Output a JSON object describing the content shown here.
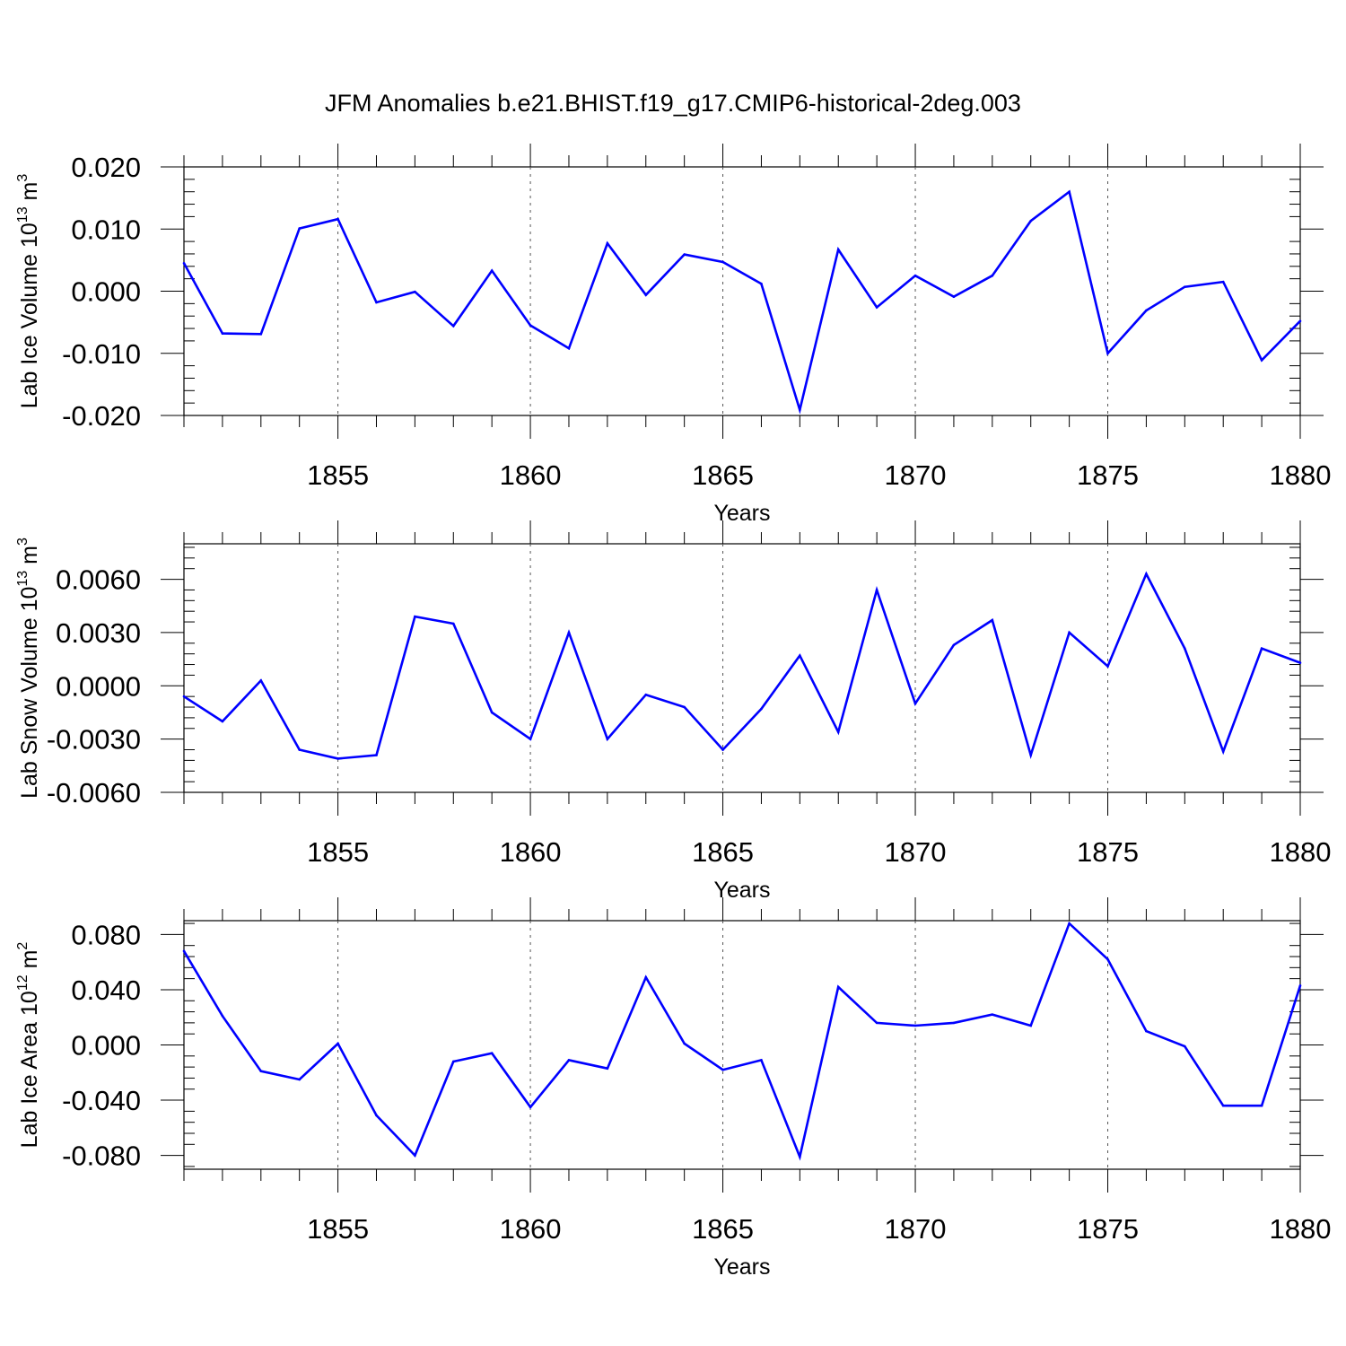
{
  "title": "JFM Anomalies b.e21.BHIST.f19_g17.CMIP6-historical-2deg.003",
  "chart_data": [
    {
      "type": "line",
      "ylabel": {
        "main": "Lab Ice Volume 10",
        "sup": "13",
        "unit": " m",
        "unit_sup": "3"
      },
      "xlabel": "Years",
      "xlim": [
        1851,
        1880
      ],
      "ylim": [
        -0.02,
        0.02
      ],
      "yticks": [
        -0.02,
        -0.01,
        0.0,
        0.01,
        0.02
      ],
      "ytick_labels": [
        "-0.020",
        "-0.010",
        "0.000",
        "0.010",
        "0.020"
      ],
      "xticks": [
        1855,
        1860,
        1865,
        1870,
        1875,
        1880
      ],
      "xtick_labels": [
        "1855",
        "1860",
        "1865",
        "1870",
        "1875",
        "1880"
      ],
      "color": "#0000ff",
      "x": [
        1851,
        1852,
        1853,
        1854,
        1855,
        1856,
        1857,
        1858,
        1859,
        1860,
        1861,
        1862,
        1863,
        1864,
        1865,
        1866,
        1867,
        1868,
        1869,
        1870,
        1871,
        1872,
        1873,
        1874,
        1875,
        1876,
        1877,
        1878,
        1879,
        1880
      ],
      "y": [
        0.0045,
        -0.0068,
        -0.0069,
        0.0101,
        0.0116,
        -0.0018,
        -0.0001,
        -0.0056,
        0.0033,
        -0.0055,
        -0.0092,
        0.0077,
        -0.0006,
        0.0059,
        0.0047,
        0.0012,
        -0.0191,
        0.0067,
        -0.0026,
        0.0025,
        -0.0009,
        0.0025,
        0.0113,
        0.016,
        -0.01,
        -0.0031,
        0.0007,
        0.0015,
        -0.0111,
        -0.0048
      ]
    },
    {
      "type": "line",
      "ylabel": {
        "main": "Lab Snow Volume 10",
        "sup": "13",
        "unit": " m",
        "unit_sup": "3"
      },
      "xlabel": "Years",
      "xlim": [
        1851,
        1880
      ],
      "ylim": [
        -0.006,
        0.008
      ],
      "yticks": [
        -0.006,
        -0.003,
        0.0,
        0.003,
        0.006
      ],
      "ytick_labels": [
        "-0.0060",
        "-0.0030",
        "0.0000",
        "0.0030",
        "0.0060"
      ],
      "xticks": [
        1855,
        1860,
        1865,
        1870,
        1875,
        1880
      ],
      "xtick_labels": [
        "1855",
        "1860",
        "1865",
        "1870",
        "1875",
        "1880"
      ],
      "color": "#0000ff",
      "x": [
        1851,
        1852,
        1853,
        1854,
        1855,
        1856,
        1857,
        1858,
        1859,
        1860,
        1861,
        1862,
        1863,
        1864,
        1865,
        1866,
        1867,
        1868,
        1869,
        1870,
        1871,
        1872,
        1873,
        1874,
        1875,
        1876,
        1877,
        1878,
        1879,
        1880
      ],
      "y": [
        -0.0006,
        -0.002,
        0.0003,
        -0.0036,
        -0.0041,
        -0.0039,
        0.0039,
        0.0035,
        -0.0015,
        -0.003,
        0.003,
        -0.003,
        -0.0005,
        -0.0012,
        -0.0036,
        -0.0013,
        0.0017,
        -0.0026,
        0.0054,
        -0.001,
        0.0023,
        0.0037,
        -0.0039,
        0.003,
        0.0011,
        0.0063,
        0.0021,
        -0.0037,
        0.0021,
        0.0013
      ]
    },
    {
      "type": "line",
      "ylabel": {
        "main": "Lab Ice Area 10",
        "sup": "12",
        "unit": " m",
        "unit_sup": "2"
      },
      "xlabel": "Years",
      "xlim": [
        1851,
        1880
      ],
      "ylim": [
        -0.09,
        0.09
      ],
      "yticks": [
        -0.08,
        -0.04,
        0.0,
        0.04,
        0.08
      ],
      "ytick_labels": [
        "-0.080",
        "-0.040",
        "0.000",
        "0.040",
        "0.080"
      ],
      "xticks": [
        1855,
        1860,
        1865,
        1870,
        1875,
        1880
      ],
      "xtick_labels": [
        "1855",
        "1860",
        "1865",
        "1870",
        "1875",
        "1880"
      ],
      "color": "#0000ff",
      "x": [
        1851,
        1852,
        1853,
        1854,
        1855,
        1856,
        1857,
        1858,
        1859,
        1860,
        1861,
        1862,
        1863,
        1864,
        1865,
        1866,
        1867,
        1868,
        1869,
        1870,
        1871,
        1872,
        1873,
        1874,
        1875,
        1876,
        1877,
        1878,
        1879,
        1880
      ],
      "y": [
        0.068,
        0.021,
        -0.019,
        -0.025,
        0.001,
        -0.051,
        -0.08,
        -0.012,
        -0.006,
        -0.045,
        -0.011,
        -0.017,
        0.049,
        0.001,
        -0.018,
        -0.011,
        -0.081,
        0.042,
        0.016,
        0.014,
        0.016,
        0.022,
        0.014,
        0.088,
        0.062,
        0.01,
        -0.001,
        -0.044,
        -0.044,
        0.043
      ]
    }
  ]
}
